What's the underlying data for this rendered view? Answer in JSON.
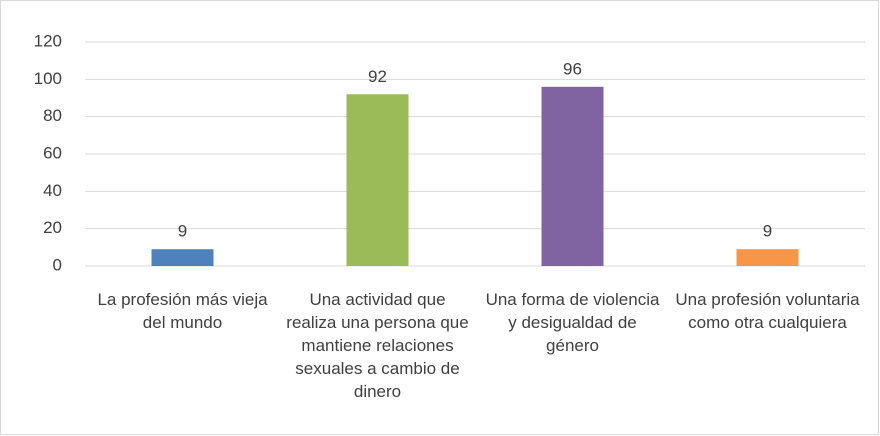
{
  "chart_data": {
    "type": "bar",
    "categories": [
      "La profesión más vieja del mundo",
      "Una actividad que realiza una persona que mantiene relaciones sexuales a cambio de dinero",
      "Una forma de violencia y desigualdad de género",
      "Una profesión voluntaria como otra cualquiera"
    ],
    "values": [
      9,
      92,
      96,
      9
    ],
    "colors": [
      "#4f81bd",
      "#9bbb59",
      "#8064a2",
      "#f79646"
    ],
    "ylim": [
      0,
      120
    ],
    "yticks": [
      0,
      20,
      40,
      60,
      80,
      100,
      120
    ],
    "grid": true,
    "data_labels": true
  }
}
